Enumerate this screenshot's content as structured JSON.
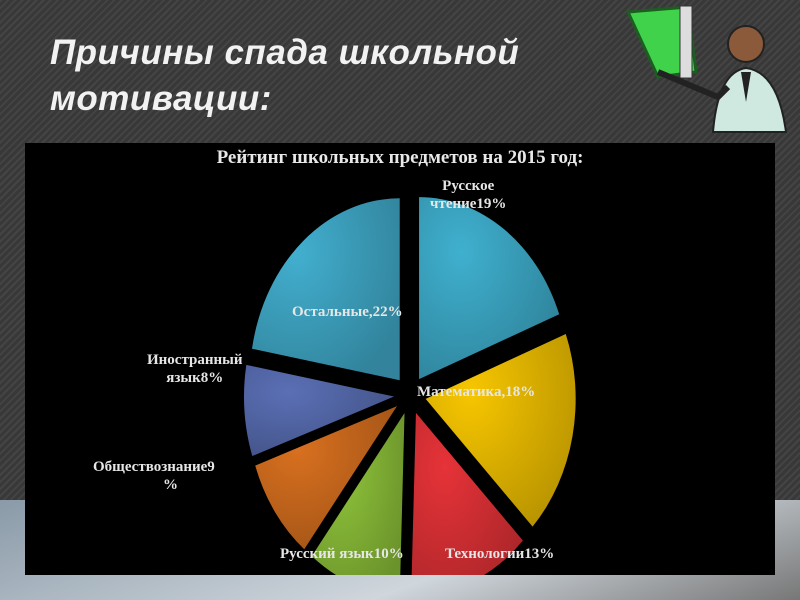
{
  "slide": {
    "title_line1": "Причины спада школьной",
    "title_line2": "мотивации:"
  },
  "chart_data": {
    "type": "pie",
    "title": "Рейтинг школьных предметов на 2015 год:",
    "slices": [
      {
        "label": "Русское чтение",
        "value": 19,
        "text1": "Русское",
        "text2": "чтение19%",
        "color": "#3fb0cf"
      },
      {
        "label": "Математика",
        "value": 18,
        "text1": "Математика,18%",
        "color": "#f7c600"
      },
      {
        "label": "Технологии",
        "value": 13,
        "text1": "Технологии13%",
        "color": "#e63338"
      },
      {
        "label": "Русский язык",
        "value": 10,
        "text1": "Русский язык10%",
        "color": "#8fc43a"
      },
      {
        "label": "Обществознание",
        "value": 9,
        "text1": "Обществознание9",
        "text2": "%",
        "color": "#d8701f"
      },
      {
        "label": "Иностранный язык",
        "value": 8,
        "text1": "Иностранный",
        "text2": "язык8%",
        "color": "#5a6fb5"
      },
      {
        "label": "Остальные",
        "value": 22,
        "text1": "Остальные,22%",
        "color": "#42afcf"
      }
    ],
    "exploded": true,
    "legend": "none"
  }
}
